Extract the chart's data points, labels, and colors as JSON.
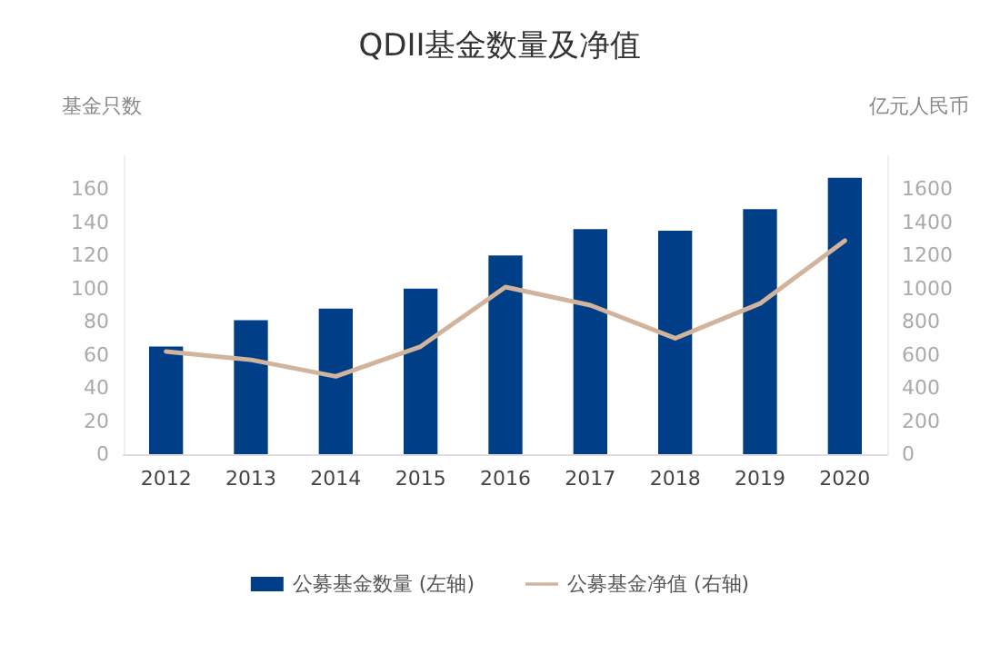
{
  "chart_data": {
    "type": "bar",
    "title": "QDII基金数量及净值",
    "ylabel": "基金只数",
    "y2label": "亿元人民币",
    "categories": [
      "2012",
      "2013",
      "2014",
      "2015",
      "2016",
      "2017",
      "2018",
      "2019",
      "2020"
    ],
    "series": [
      {
        "name": "公募基金数量 (左轴)",
        "color": "#003f87",
        "values": [
          65,
          81,
          88,
          100,
          120,
          136,
          135,
          148,
          167
        ]
      },
      {
        "name": "公募基金净值 (右轴)",
        "type": "line",
        "axis": "y2",
        "color": "#d2b49c",
        "values": [
          620,
          570,
          470,
          650,
          1010,
          900,
          700,
          910,
          1290
        ]
      }
    ],
    "ylim": [
      0,
      180
    ],
    "yticks": [
      0,
      20,
      40,
      60,
      80,
      100,
      120,
      140,
      160
    ],
    "y2lim": [
      0,
      1800
    ],
    "y2ticks": [
      0,
      200,
      400,
      600,
      800,
      1000,
      1200,
      1400,
      1600
    ],
    "grid": false,
    "legend": "bottom",
    "marker": "none",
    "line_style": "solid"
  }
}
